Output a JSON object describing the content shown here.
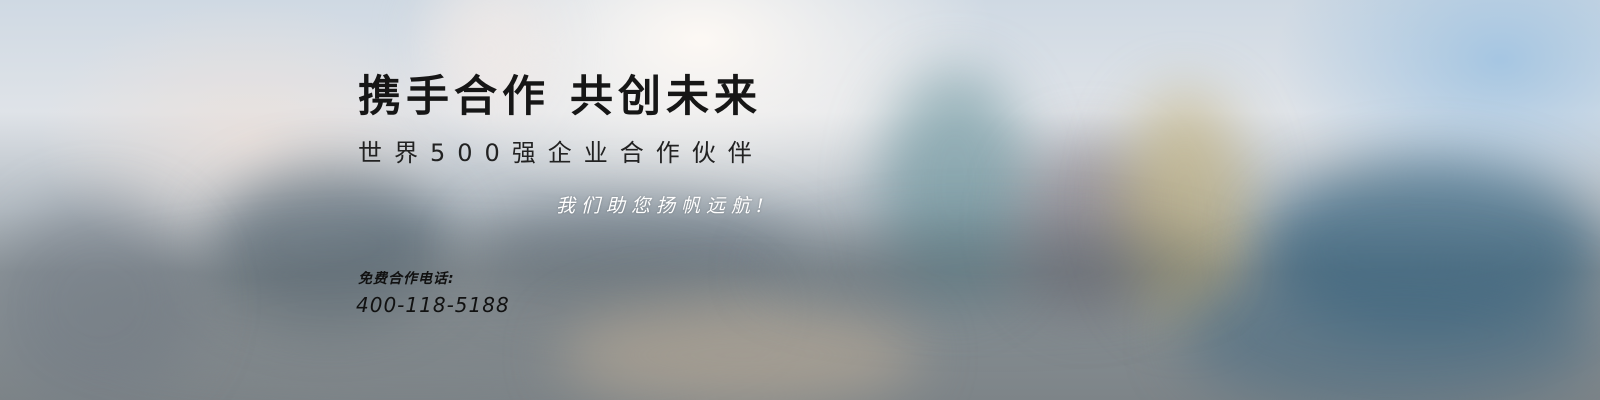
{
  "banner": {
    "headline": "携手合作 共创未来",
    "subheadline": "世界500强企业合作伙伴",
    "slogan": "我们助您扬帆远航!",
    "phone_label": "免费合作电话:",
    "phone_number": "400-118-5188"
  },
  "colors": {
    "headline_text": "#161616",
    "slogan_text": "#ffffff",
    "sky": "#cfd9e3",
    "water": "#7d8488"
  }
}
